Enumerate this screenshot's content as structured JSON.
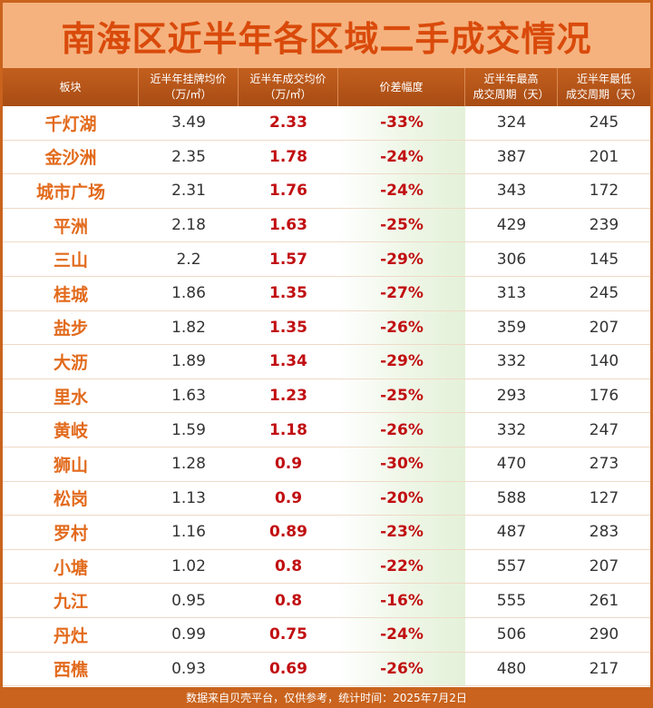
{
  "title": "南海区近半年各区域二手成交情况",
  "headers": [
    "板块",
    "近半年挂牌均价\n（万/㎡）",
    "近半年成交均价\n（万/㎡）",
    "价差幅度",
    "近半年最高\n成交周期（天）",
    "近半年最低\n成交周期（天）"
  ],
  "footer": "数据来自贝壳平台，仅供参考，统计时间：2025年7月2日",
  "colors": {
    "accent": "#c9631d",
    "title_bg": "#f5b27e",
    "title_text": "#d94a0b",
    "name_text": "#e26a1c",
    "value_red": "#c10f12"
  },
  "chart_data": {
    "type": "table",
    "columns": [
      "板块",
      "近半年挂牌均价（万/㎡）",
      "近半年成交均价（万/㎡）",
      "价差幅度",
      "近半年最高成交周期（天）",
      "近半年最低成交周期（天）"
    ],
    "rows": [
      [
        "千灯湖",
        "3.49",
        "2.33",
        "-33%",
        "324",
        "245"
      ],
      [
        "金沙洲",
        "2.35",
        "1.78",
        "-24%",
        "387",
        "201"
      ],
      [
        "城市广场",
        "2.31",
        "1.76",
        "-24%",
        "343",
        "172"
      ],
      [
        "平洲",
        "2.18",
        "1.63",
        "-25%",
        "429",
        "239"
      ],
      [
        "三山",
        "2.2",
        "1.57",
        "-29%",
        "306",
        "145"
      ],
      [
        "桂城",
        "1.86",
        "1.35",
        "-27%",
        "313",
        "245"
      ],
      [
        "盐步",
        "1.82",
        "1.35",
        "-26%",
        "359",
        "207"
      ],
      [
        "大沥",
        "1.89",
        "1.34",
        "-29%",
        "332",
        "140"
      ],
      [
        "里水",
        "1.63",
        "1.23",
        "-25%",
        "293",
        "176"
      ],
      [
        "黄岐",
        "1.59",
        "1.18",
        "-26%",
        "332",
        "247"
      ],
      [
        "狮山",
        "1.28",
        "0.9",
        "-30%",
        "470",
        "273"
      ],
      [
        "松岗",
        "1.13",
        "0.9",
        "-20%",
        "588",
        "127"
      ],
      [
        "罗村",
        "1.16",
        "0.89",
        "-23%",
        "487",
        "283"
      ],
      [
        "小塘",
        "1.02",
        "0.8",
        "-22%",
        "557",
        "207"
      ],
      [
        "九江",
        "0.95",
        "0.8",
        "-16%",
        "555",
        "261"
      ],
      [
        "丹灶",
        "0.99",
        "0.75",
        "-24%",
        "506",
        "290"
      ],
      [
        "西樵",
        "0.93",
        "0.69",
        "-26%",
        "480",
        "217"
      ]
    ]
  }
}
